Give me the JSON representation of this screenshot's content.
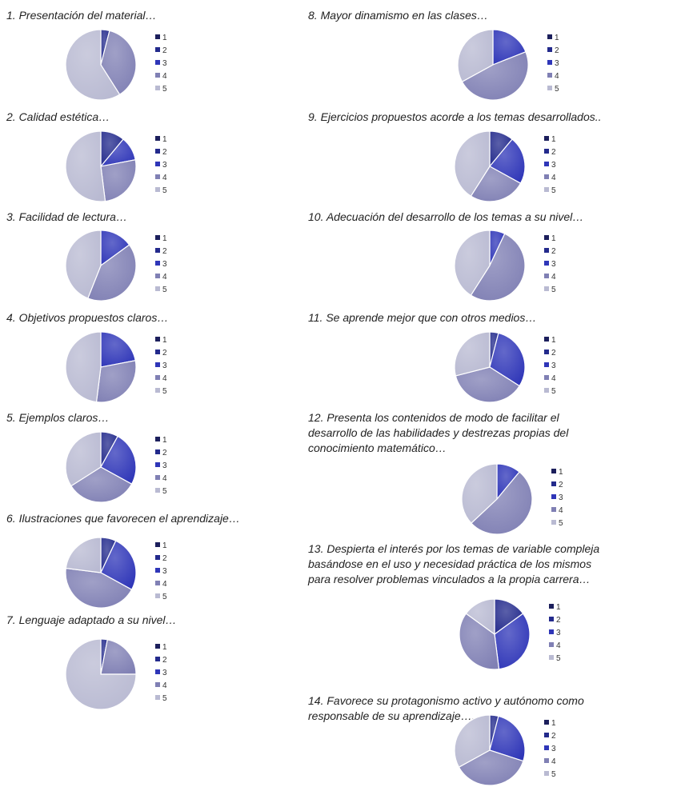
{
  "chart_data": [
    {
      "type": "pie",
      "title": "1.  Presentación del material…",
      "categories": [
        "1",
        "2",
        "3",
        "4",
        "5"
      ],
      "values": [
        0,
        4,
        0,
        37,
        59
      ],
      "legend_position": "right"
    },
    {
      "type": "pie",
      "title": "2. Calidad estética…",
      "categories": [
        "1",
        "2",
        "3",
        "4",
        "5"
      ],
      "values": [
        0,
        11,
        11,
        26,
        52
      ],
      "legend_position": "right"
    },
    {
      "type": "pie",
      "title": "3. Facilidad de lectura…",
      "categories": [
        "1",
        "2",
        "3",
        "4",
        "5"
      ],
      "values": [
        0,
        0,
        15,
        41,
        44
      ],
      "legend_position": "right"
    },
    {
      "type": "pie",
      "title": "4. Objetivos propuestos claros…",
      "categories": [
        "1",
        "2",
        "3",
        "4",
        "5"
      ],
      "values": [
        0,
        0,
        22,
        30,
        48
      ],
      "legend_position": "right"
    },
    {
      "type": "pie",
      "title": "5. Ejemplos claros…",
      "categories": [
        "1",
        "2",
        "3",
        "4",
        "5"
      ],
      "values": [
        0,
        8,
        25,
        33,
        34
      ],
      "legend_position": "right"
    },
    {
      "type": "pie",
      "title": "6. Ilustraciones que favorecen el aprendizaje…",
      "categories": [
        "1",
        "2",
        "3",
        "4",
        "5"
      ],
      "values": [
        0,
        7,
        26,
        44,
        23
      ],
      "legend_position": "right"
    },
    {
      "type": "pie",
      "title": "7. Lenguaje adaptado a su nivel…",
      "categories": [
        "1",
        "2",
        "3",
        "4",
        "5"
      ],
      "values": [
        0,
        3,
        0,
        22,
        75
      ],
      "legend_position": "right"
    },
    {
      "type": "pie",
      "title": "8. Mayor dinamismo en las clases…",
      "categories": [
        "1",
        "2",
        "3",
        "4",
        "5"
      ],
      "values": [
        0,
        0,
        19,
        48,
        33
      ],
      "legend_position": "right"
    },
    {
      "type": "pie",
      "title": "9. Ejercicios propuestos acorde a los temas desarrollados..",
      "categories": [
        "1",
        "2",
        "3",
        "4",
        "5"
      ],
      "values": [
        0,
        11,
        22,
        26,
        41
      ],
      "legend_position": "right"
    },
    {
      "type": "pie",
      "title": "10. Adecuación del desarrollo de los temas a su nivel…",
      "categories": [
        "1",
        "2",
        "3",
        "4",
        "5"
      ],
      "values": [
        0,
        0,
        7,
        52,
        41
      ],
      "legend_position": "right"
    },
    {
      "type": "pie",
      "title": "11. Se aprende mejor que con otros medios…",
      "categories": [
        "1",
        "2",
        "3",
        "4",
        "5"
      ],
      "values": [
        0,
        4,
        30,
        37,
        29
      ],
      "legend_position": "right"
    },
    {
      "type": "pie",
      "title": "12. Presenta los contenidos de modo de facilitar el\ndesarrollo de las habilidades y destrezas propias del\nconocimiento matemático…",
      "categories": [
        "1",
        "2",
        "3",
        "4",
        "5"
      ],
      "values": [
        0,
        0,
        11,
        52,
        37
      ],
      "legend_position": "right"
    },
    {
      "type": "pie",
      "title": "13. Despierta el interés por los temas de variable compleja\nbasándose en el uso y necesidad práctica de los mismos\npara resolver problemas vinculados a la propia carrera…",
      "categories": [
        "1",
        "2",
        "3",
        "4",
        "5"
      ],
      "values": [
        0,
        15,
        33,
        37,
        15
      ],
      "legend_position": "right"
    },
    {
      "type": "pie",
      "title": "14. Favorece su protagonismo activo y autónomo como\nresponsable de su aprendizaje….",
      "categories": [
        "1",
        "2",
        "3",
        "4",
        "5"
      ],
      "values": [
        0,
        4,
        26,
        37,
        33
      ],
      "legend_position": "right"
    }
  ],
  "colors": [
    "#1c1f5c",
    "#232a8c",
    "#2f36b8",
    "#8080b4",
    "#b9bad2"
  ]
}
